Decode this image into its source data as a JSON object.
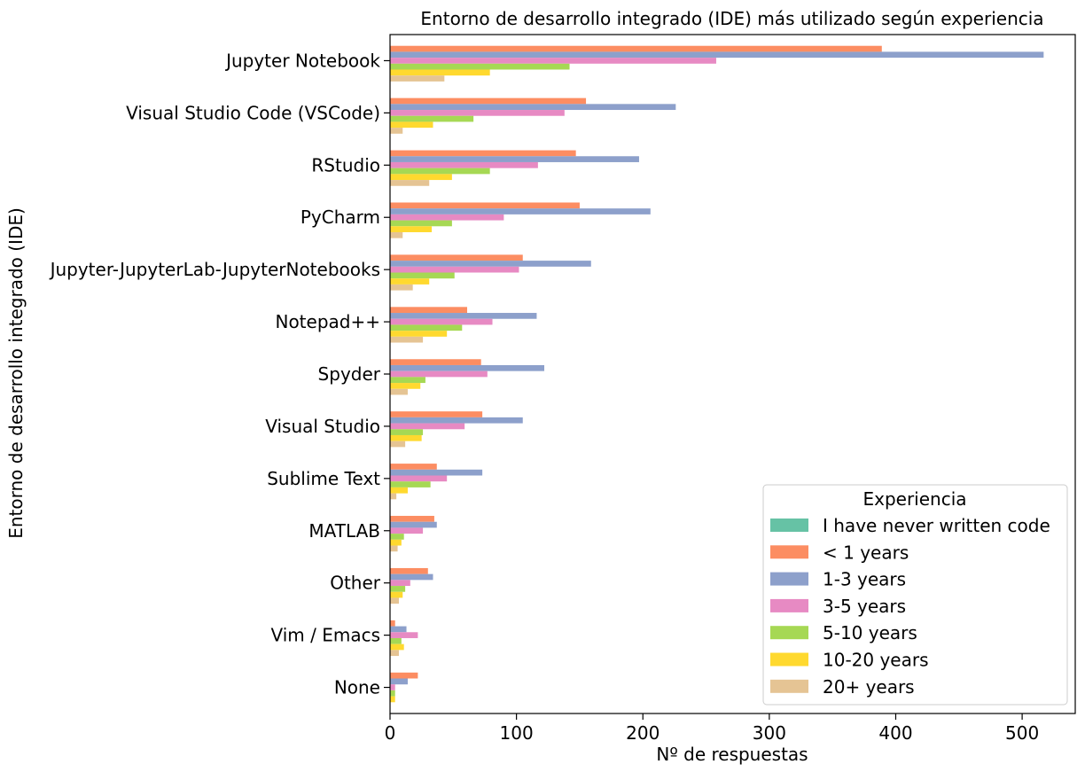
{
  "chart_data": {
    "type": "bar",
    "orientation": "horizontal",
    "title": "Entorno de desarrollo integrado (IDE) más utilizado según experiencia",
    "xlabel": "Nº de respuestas",
    "ylabel": "Entorno de desarrollo integrado (IDE)",
    "xlim": [
      0,
      542
    ],
    "xticks": [
      0,
      100,
      200,
      300,
      400,
      500
    ],
    "grid": false,
    "legend_title": "Experiencia",
    "legend_position": "lower-right",
    "categories": [
      "Jupyter Notebook",
      "Visual Studio Code (VSCode)",
      "RStudio",
      "PyCharm",
      "Jupyter-JupyterLab-JupyterNotebooks",
      "Notepad++",
      "Spyder",
      "Visual Studio",
      "Sublime Text",
      "MATLAB",
      "Other",
      "Vim / Emacs",
      "None"
    ],
    "series": [
      {
        "name": "I have never written code",
        "color": "#66c2a5",
        "values": [
          0,
          0,
          0,
          0,
          0,
          0,
          0,
          0,
          0,
          0,
          0,
          0,
          0
        ]
      },
      {
        "name": "< 1 years",
        "color": "#fc8d62",
        "values": [
          389,
          155,
          147,
          150,
          105,
          61,
          72,
          73,
          37,
          35,
          30,
          4,
          22
        ]
      },
      {
        "name": "1-3 years",
        "color": "#8da0cb",
        "values": [
          517,
          226,
          197,
          206,
          159,
          116,
          122,
          105,
          73,
          37,
          34,
          13,
          14
        ]
      },
      {
        "name": "3-5 years",
        "color": "#e78ac3",
        "values": [
          258,
          138,
          117,
          90,
          102,
          81,
          77,
          59,
          45,
          26,
          16,
          22,
          4
        ]
      },
      {
        "name": "5-10 years",
        "color": "#a6d854",
        "values": [
          142,
          66,
          79,
          49,
          51,
          57,
          28,
          26,
          32,
          11,
          12,
          9,
          4
        ]
      },
      {
        "name": "10-20 years",
        "color": "#ffd92f",
        "values": [
          79,
          34,
          49,
          33,
          31,
          45,
          24,
          25,
          14,
          9,
          10,
          11,
          4
        ]
      },
      {
        "name": "20+ years",
        "color": "#e5c494",
        "values": [
          43,
          10,
          31,
          10,
          18,
          26,
          14,
          12,
          5,
          6,
          7,
          7,
          0
        ]
      }
    ]
  }
}
